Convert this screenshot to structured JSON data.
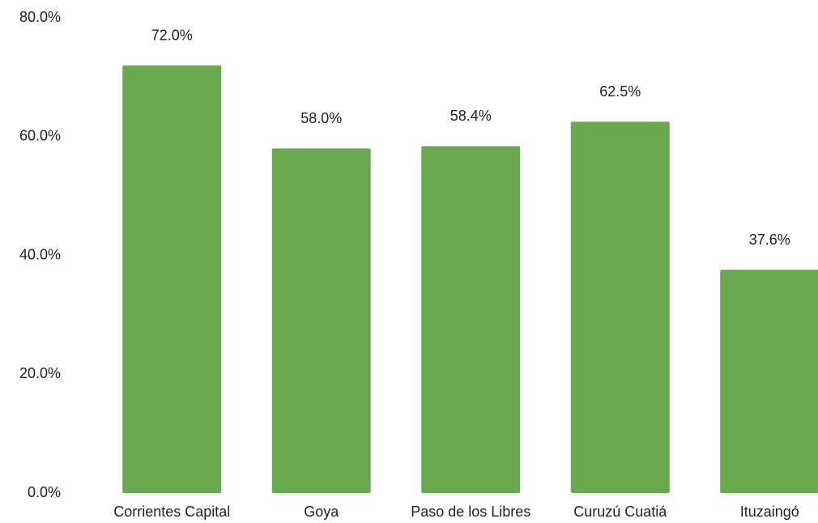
{
  "chart_data": {
    "type": "bar",
    "categories": [
      "Corrientes Capital",
      "Goya",
      "Paso de los Libres",
      "Curuzú Cuatiá",
      "Ituzaingó"
    ],
    "values": [
      72.0,
      58.0,
      58.4,
      62.5,
      37.6
    ],
    "value_labels": [
      "72.0%",
      "58.0%",
      "58.4%",
      "62.5%",
      "37.6%"
    ],
    "color": "#6aa84f",
    "ylim": [
      0,
      80
    ],
    "yticks": [
      {
        "value": 0,
        "label": "0.0%"
      },
      {
        "value": 20,
        "label": "20.0%"
      },
      {
        "value": 40,
        "label": "40.0%"
      },
      {
        "value": 60,
        "label": "60.0%"
      },
      {
        "value": 80,
        "label": "80.0%"
      }
    ],
    "grid": false
  }
}
